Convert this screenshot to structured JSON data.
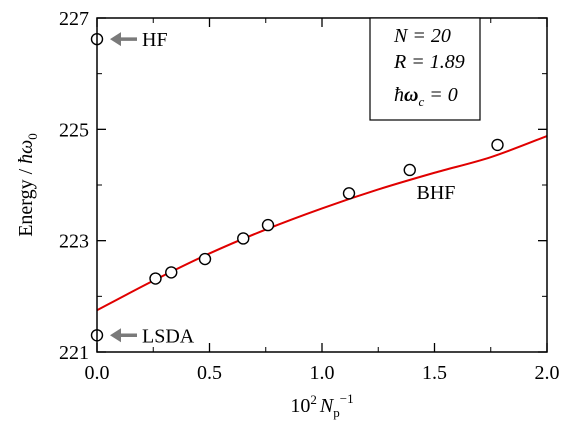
{
  "chart_data": {
    "type": "scatter",
    "xlabel_parts": {
      "prefix": "10",
      "prefix_sup": "2",
      "var": "N",
      "var_sub": "p",
      "var_sup": "−1"
    },
    "ylabel_parts": {
      "text": "Energy / ",
      "hbar": "ħ",
      "omega": "ω",
      "sub": "0"
    },
    "xlim": [
      0,
      2
    ],
    "ylim": [
      221,
      227
    ],
    "xticks": [
      "0.0",
      "0.5",
      "1.0",
      "1.5",
      "2.0"
    ],
    "yticks": [
      "221",
      "223",
      "225",
      "227"
    ],
    "series": [
      {
        "x": [
          0.26,
          0.33,
          0.48,
          0.65,
          0.76,
          1.12,
          1.39,
          1.78
        ],
        "y": [
          222.32,
          222.43,
          222.67,
          223.04,
          223.28,
          223.85,
          224.27,
          224.72
        ],
        "marker": "open-circle"
      }
    ],
    "fit_curve": {
      "color": "#e00000",
      "x": [
        0,
        0.25,
        0.5,
        0.75,
        1.0,
        1.25,
        1.5,
        1.75,
        2.0
      ],
      "y": [
        221.75,
        222.28,
        222.77,
        223.2,
        223.58,
        223.92,
        224.22,
        224.5,
        224.88
      ]
    },
    "reference_points": [
      {
        "label": "HF",
        "x": 0,
        "y": 226.62
      },
      {
        "label": "LSDA",
        "x": 0,
        "y": 221.3
      }
    ],
    "curve_label": "BHF",
    "curve_label_pos": {
      "x": 1.42,
      "y": 223.75
    },
    "legend_box": {
      "line1": "N = 20",
      "line2": "R = 1.89",
      "line3_hbar": "ħ",
      "line3_omega": "ω",
      "line3_sub": "c",
      "line3_rest": " = 0"
    },
    "grid": false,
    "legend_position": "top-right"
  }
}
